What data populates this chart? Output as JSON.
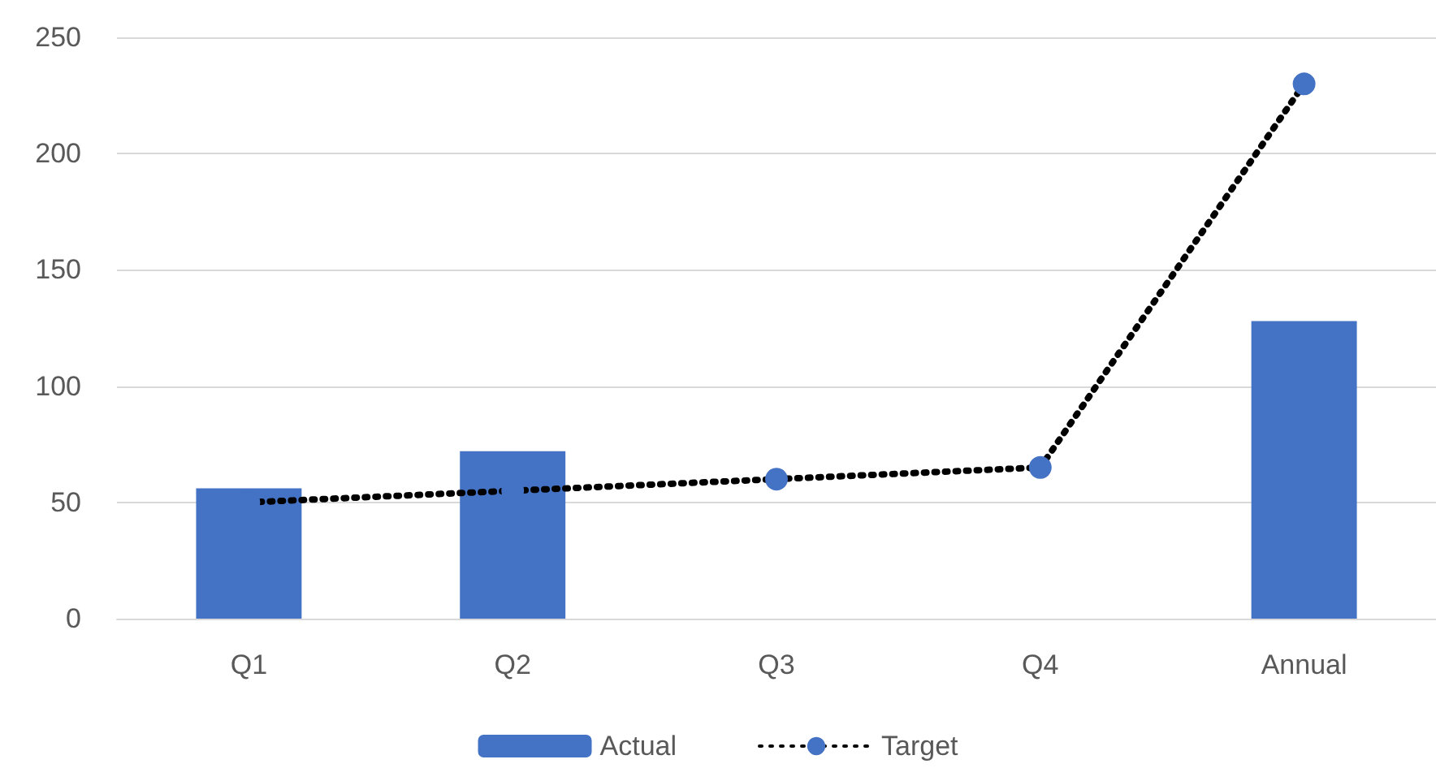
{
  "chart_data": {
    "type": "bar",
    "categories": [
      "Q1",
      "Q2",
      "Q3",
      "Q4",
      "Annual"
    ],
    "series": [
      {
        "name": "Actual",
        "color": "#4472c4",
        "values": [
          56,
          72,
          null,
          null,
          128
        ]
      },
      {
        "name": "Target",
        "type": "line",
        "color": "#4472c4",
        "marker": "circle",
        "line_style": "dotted",
        "values": [
          50,
          55,
          60,
          65,
          230
        ]
      }
    ],
    "ylim": [
      0,
      250
    ],
    "yticks": [
      0,
      50,
      100,
      150,
      200,
      250
    ],
    "grid": "y",
    "legend": "bottom"
  }
}
